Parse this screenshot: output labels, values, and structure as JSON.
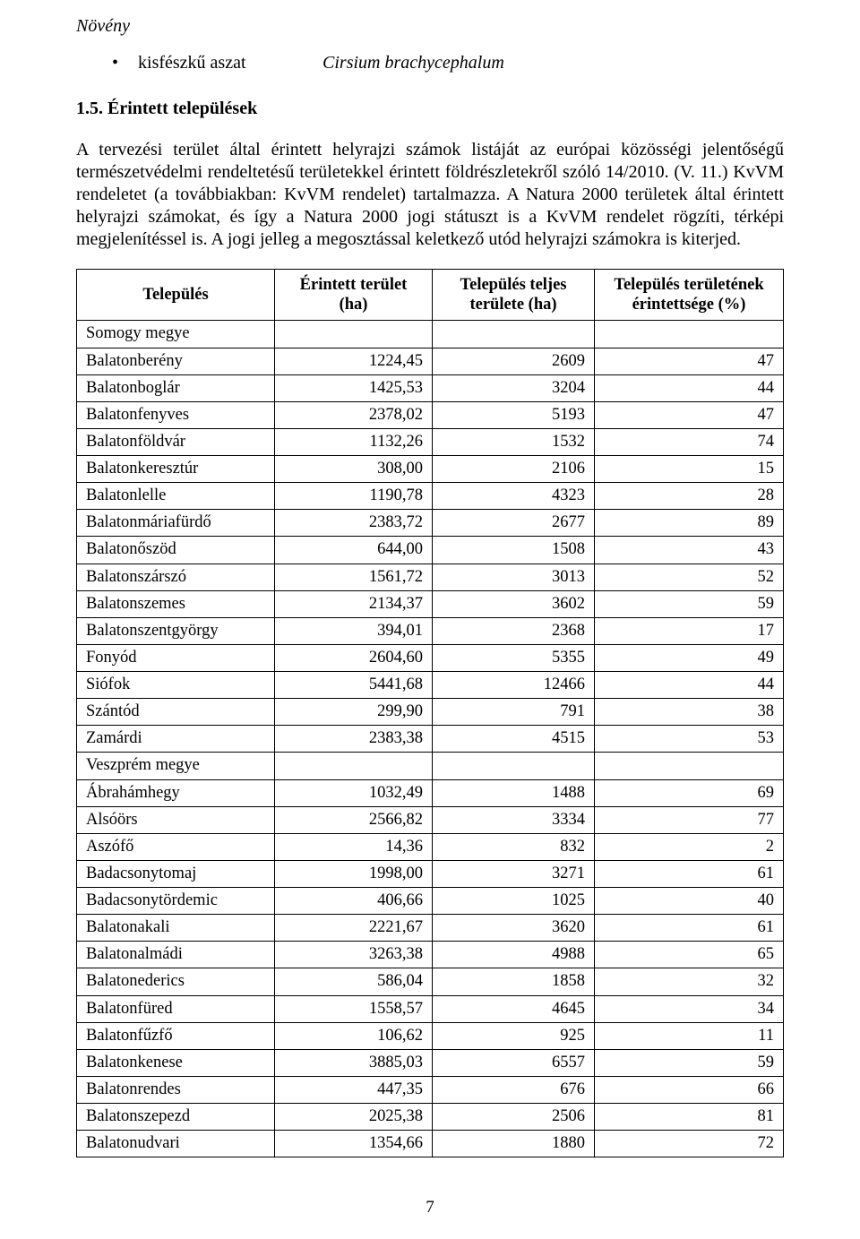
{
  "section_label": "Növény",
  "species": {
    "common": "kisfészkű aszat",
    "latin": "Cirsium brachycephalum"
  },
  "heading": "1.5. Érintett települések",
  "paragraph": "A tervezési terület által érintett helyrajzi számok listáját az európai közösségi jelentőségű természetvédelmi rendeltetésű területekkel érintett földrészletekről szóló 14/2010. (V. 11.) KvVM rendeletet (a továbbiakban: KvVM rendelet) tartalmazza. A Natura 2000 területek által érintett helyrajzi számokat, és így a Natura 2000 jogi státuszt is a KvVM rendelet rögzíti, térképi megjelenítéssel is. A jogi jelleg a megosztással keletkező utód helyrajzi számokra is kiterjed.",
  "table": {
    "headers": {
      "name": "Település",
      "area": "Érintett terület (ha)",
      "total": "Település teljes területe (ha)",
      "pct": "Település területének érintettsége (%)"
    },
    "groups": [
      {
        "label": "Somogy megye",
        "rows": [
          {
            "name": "Balatonberény",
            "area": "1224,45",
            "total": "2609",
            "pct": "47"
          },
          {
            "name": "Balatonboglár",
            "area": "1425,53",
            "total": "3204",
            "pct": "44"
          },
          {
            "name": "Balatonfenyves",
            "area": "2378,02",
            "total": "5193",
            "pct": "47"
          },
          {
            "name": "Balatonföldvár",
            "area": "1132,26",
            "total": "1532",
            "pct": "74"
          },
          {
            "name": "Balatonkeresztúr",
            "area": "308,00",
            "total": "2106",
            "pct": "15"
          },
          {
            "name": "Balatonlelle",
            "area": "1190,78",
            "total": "4323",
            "pct": "28"
          },
          {
            "name": "Balatonmáriafürdő",
            "area": "2383,72",
            "total": "2677",
            "pct": "89"
          },
          {
            "name": "Balatonőszöd",
            "area": "644,00",
            "total": "1508",
            "pct": "43"
          },
          {
            "name": "Balatonszárszó",
            "area": "1561,72",
            "total": "3013",
            "pct": "52"
          },
          {
            "name": "Balatonszemes",
            "area": "2134,37",
            "total": "3602",
            "pct": "59"
          },
          {
            "name": "Balatonszentgyörgy",
            "area": "394,01",
            "total": "2368",
            "pct": "17"
          },
          {
            "name": "Fonyód",
            "area": "2604,60",
            "total": "5355",
            "pct": "49"
          },
          {
            "name": "Siófok",
            "area": "5441,68",
            "total": "12466",
            "pct": "44"
          },
          {
            "name": "Szántód",
            "area": "299,90",
            "total": "791",
            "pct": "38"
          },
          {
            "name": "Zamárdi",
            "area": "2383,38",
            "total": "4515",
            "pct": "53"
          }
        ]
      },
      {
        "label": "Veszprém megye",
        "rows": [
          {
            "name": "Ábrahámhegy",
            "area": "1032,49",
            "total": "1488",
            "pct": "69"
          },
          {
            "name": "Alsóörs",
            "area": "2566,82",
            "total": "3334",
            "pct": "77"
          },
          {
            "name": "Aszófő",
            "area": "14,36",
            "total": "832",
            "pct": "2"
          },
          {
            "name": "Badacsonytomaj",
            "area": "1998,00",
            "total": "3271",
            "pct": "61"
          },
          {
            "name": "Badacsonytördemic",
            "area": "406,66",
            "total": "1025",
            "pct": "40"
          },
          {
            "name": "Balatonakali",
            "area": "2221,67",
            "total": "3620",
            "pct": "61"
          },
          {
            "name": "Balatonalmádi",
            "area": "3263,38",
            "total": "4988",
            "pct": "65"
          },
          {
            "name": "Balatonederics",
            "area": "586,04",
            "total": "1858",
            "pct": "32"
          },
          {
            "name": "Balatonfüred",
            "area": "1558,57",
            "total": "4645",
            "pct": "34"
          },
          {
            "name": "Balatonfűzfő",
            "area": "106,62",
            "total": "925",
            "pct": "11"
          },
          {
            "name": "Balatonkenese",
            "area": "3885,03",
            "total": "6557",
            "pct": "59"
          },
          {
            "name": "Balatonrendes",
            "area": "447,35",
            "total": "676",
            "pct": "66"
          },
          {
            "name": "Balatonszepezd",
            "area": "2025,38",
            "total": "2506",
            "pct": "81"
          },
          {
            "name": "Balatonudvari",
            "area": "1354,66",
            "total": "1880",
            "pct": "72"
          }
        ]
      }
    ]
  },
  "page_number": "7"
}
